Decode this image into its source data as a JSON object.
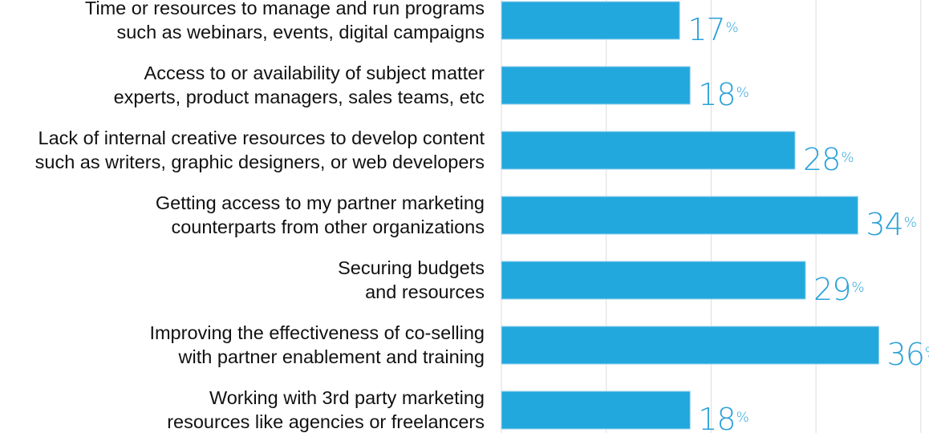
{
  "chart_data": {
    "type": "bar",
    "orientation": "horizontal",
    "categories": [
      [
        "Time or resources to manage and run programs",
        "such as webinars, events, digital campaigns"
      ],
      [
        "Access to or availability of subject matter",
        "experts, product managers, sales teams, etc"
      ],
      [
        "Lack of internal creative resources to develop content",
        "such as writers, graphic designers, or web developers"
      ],
      [
        "Getting access to my partner marketing",
        "counterparts from other organizations"
      ],
      [
        "Securing budgets",
        "and resources"
      ],
      [
        "Improving the effectiveness of co-selling",
        "with partner enablement and training"
      ],
      [
        "Working with 3rd party marketing",
        "resources like agencies or freelancers"
      ]
    ],
    "values": [
      17,
      18,
      28,
      34,
      29,
      36,
      18
    ],
    "value_suffix": "%",
    "xlim": [
      0,
      40
    ],
    "grid": true,
    "grid_step": 10,
    "colors": {
      "bar": "#23a8de",
      "bar_border": "#9fd3ee",
      "label": "#2aa1d8",
      "grid": "#dddddd"
    }
  }
}
